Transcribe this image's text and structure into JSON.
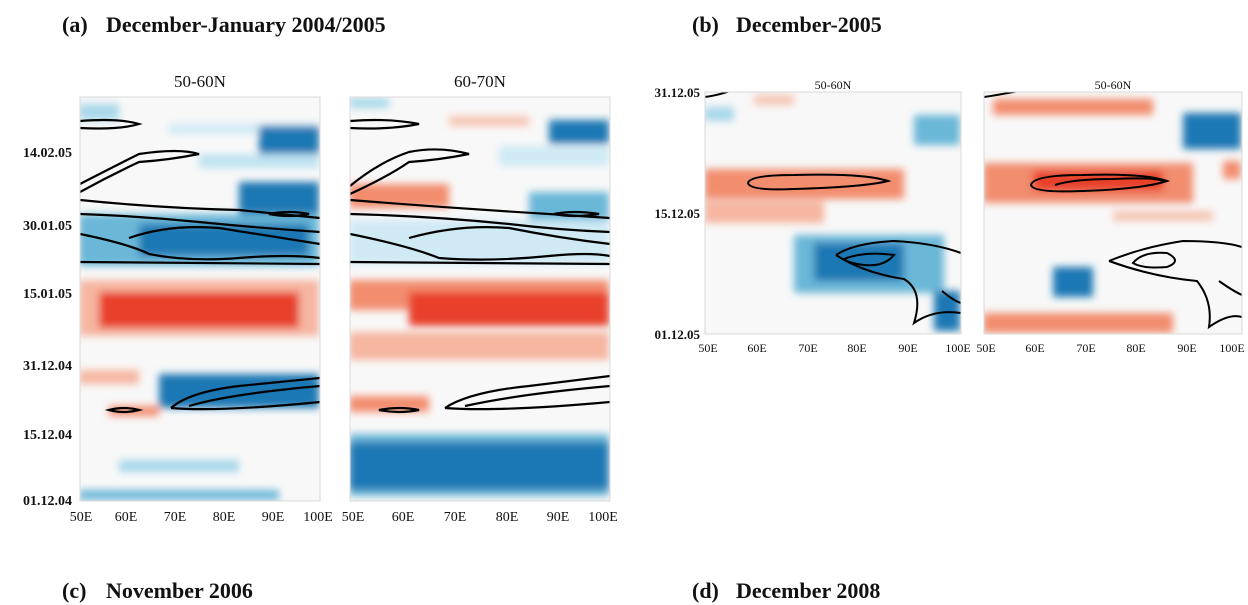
{
  "sections": {
    "a": {
      "label": "(a)",
      "title": "December-January 2004/2005"
    },
    "b": {
      "label": "(b)",
      "title": "December-2005"
    },
    "c": {
      "label": "(c)",
      "title": "November 2006"
    },
    "d": {
      "label": "(d)",
      "title": "December 2008"
    }
  },
  "chart_data": [
    {
      "type": "heatmap",
      "section": "(a)",
      "title": "50-60N",
      "x_tick_labels": [
        "50E",
        "60E",
        "70E",
        "80E",
        "90E",
        "100E"
      ],
      "y_tick_labels": [
        "14.02.05",
        "30.01.05",
        "15.01.05",
        "31.12.04",
        "15.12.04",
        "01.12.04"
      ],
      "xlim": [
        "50E",
        "100E"
      ],
      "ylim": [
        "01.12.04",
        "late February 2005"
      ],
      "colors": {
        "positive": "#e8412a",
        "negative": "#1a78b4",
        "contour": "#000000"
      }
    },
    {
      "type": "heatmap",
      "section": "(a)",
      "title": "60-70N",
      "x_tick_labels": [
        "50E",
        "60E",
        "70E",
        "80E",
        "90E",
        "100E"
      ],
      "xlim": [
        "50E",
        "100E"
      ],
      "ylim": [
        "01.12.04",
        "late February 2005"
      ],
      "colors": {
        "positive": "#e8412a",
        "negative": "#1a78b4",
        "contour": "#000000"
      }
    },
    {
      "type": "heatmap",
      "section": "(b)",
      "title": "50-60N",
      "x_tick_labels": [
        "50E",
        "60E",
        "70E",
        "80E",
        "90E",
        "100E"
      ],
      "y_tick_labels": [
        "31.12.05",
        "15.12.05",
        "01.12.05"
      ],
      "xlim": [
        "50E",
        "100E"
      ],
      "ylim": [
        "01.12.05",
        "31.12.05"
      ],
      "colors": {
        "positive": "#e8412a",
        "negative": "#1a78b4",
        "contour": "#000000"
      }
    },
    {
      "type": "heatmap",
      "section": "(b)",
      "title": "50-60N",
      "x_tick_labels": [
        "50E",
        "60E",
        "70E",
        "80E",
        "90E",
        "100E"
      ],
      "xlim": [
        "50E",
        "100E"
      ],
      "ylim": [
        "01.12.05",
        "31.12.05"
      ],
      "colors": {
        "positive": "#e8412a",
        "negative": "#1a78b4",
        "contour": "#000000"
      }
    }
  ]
}
